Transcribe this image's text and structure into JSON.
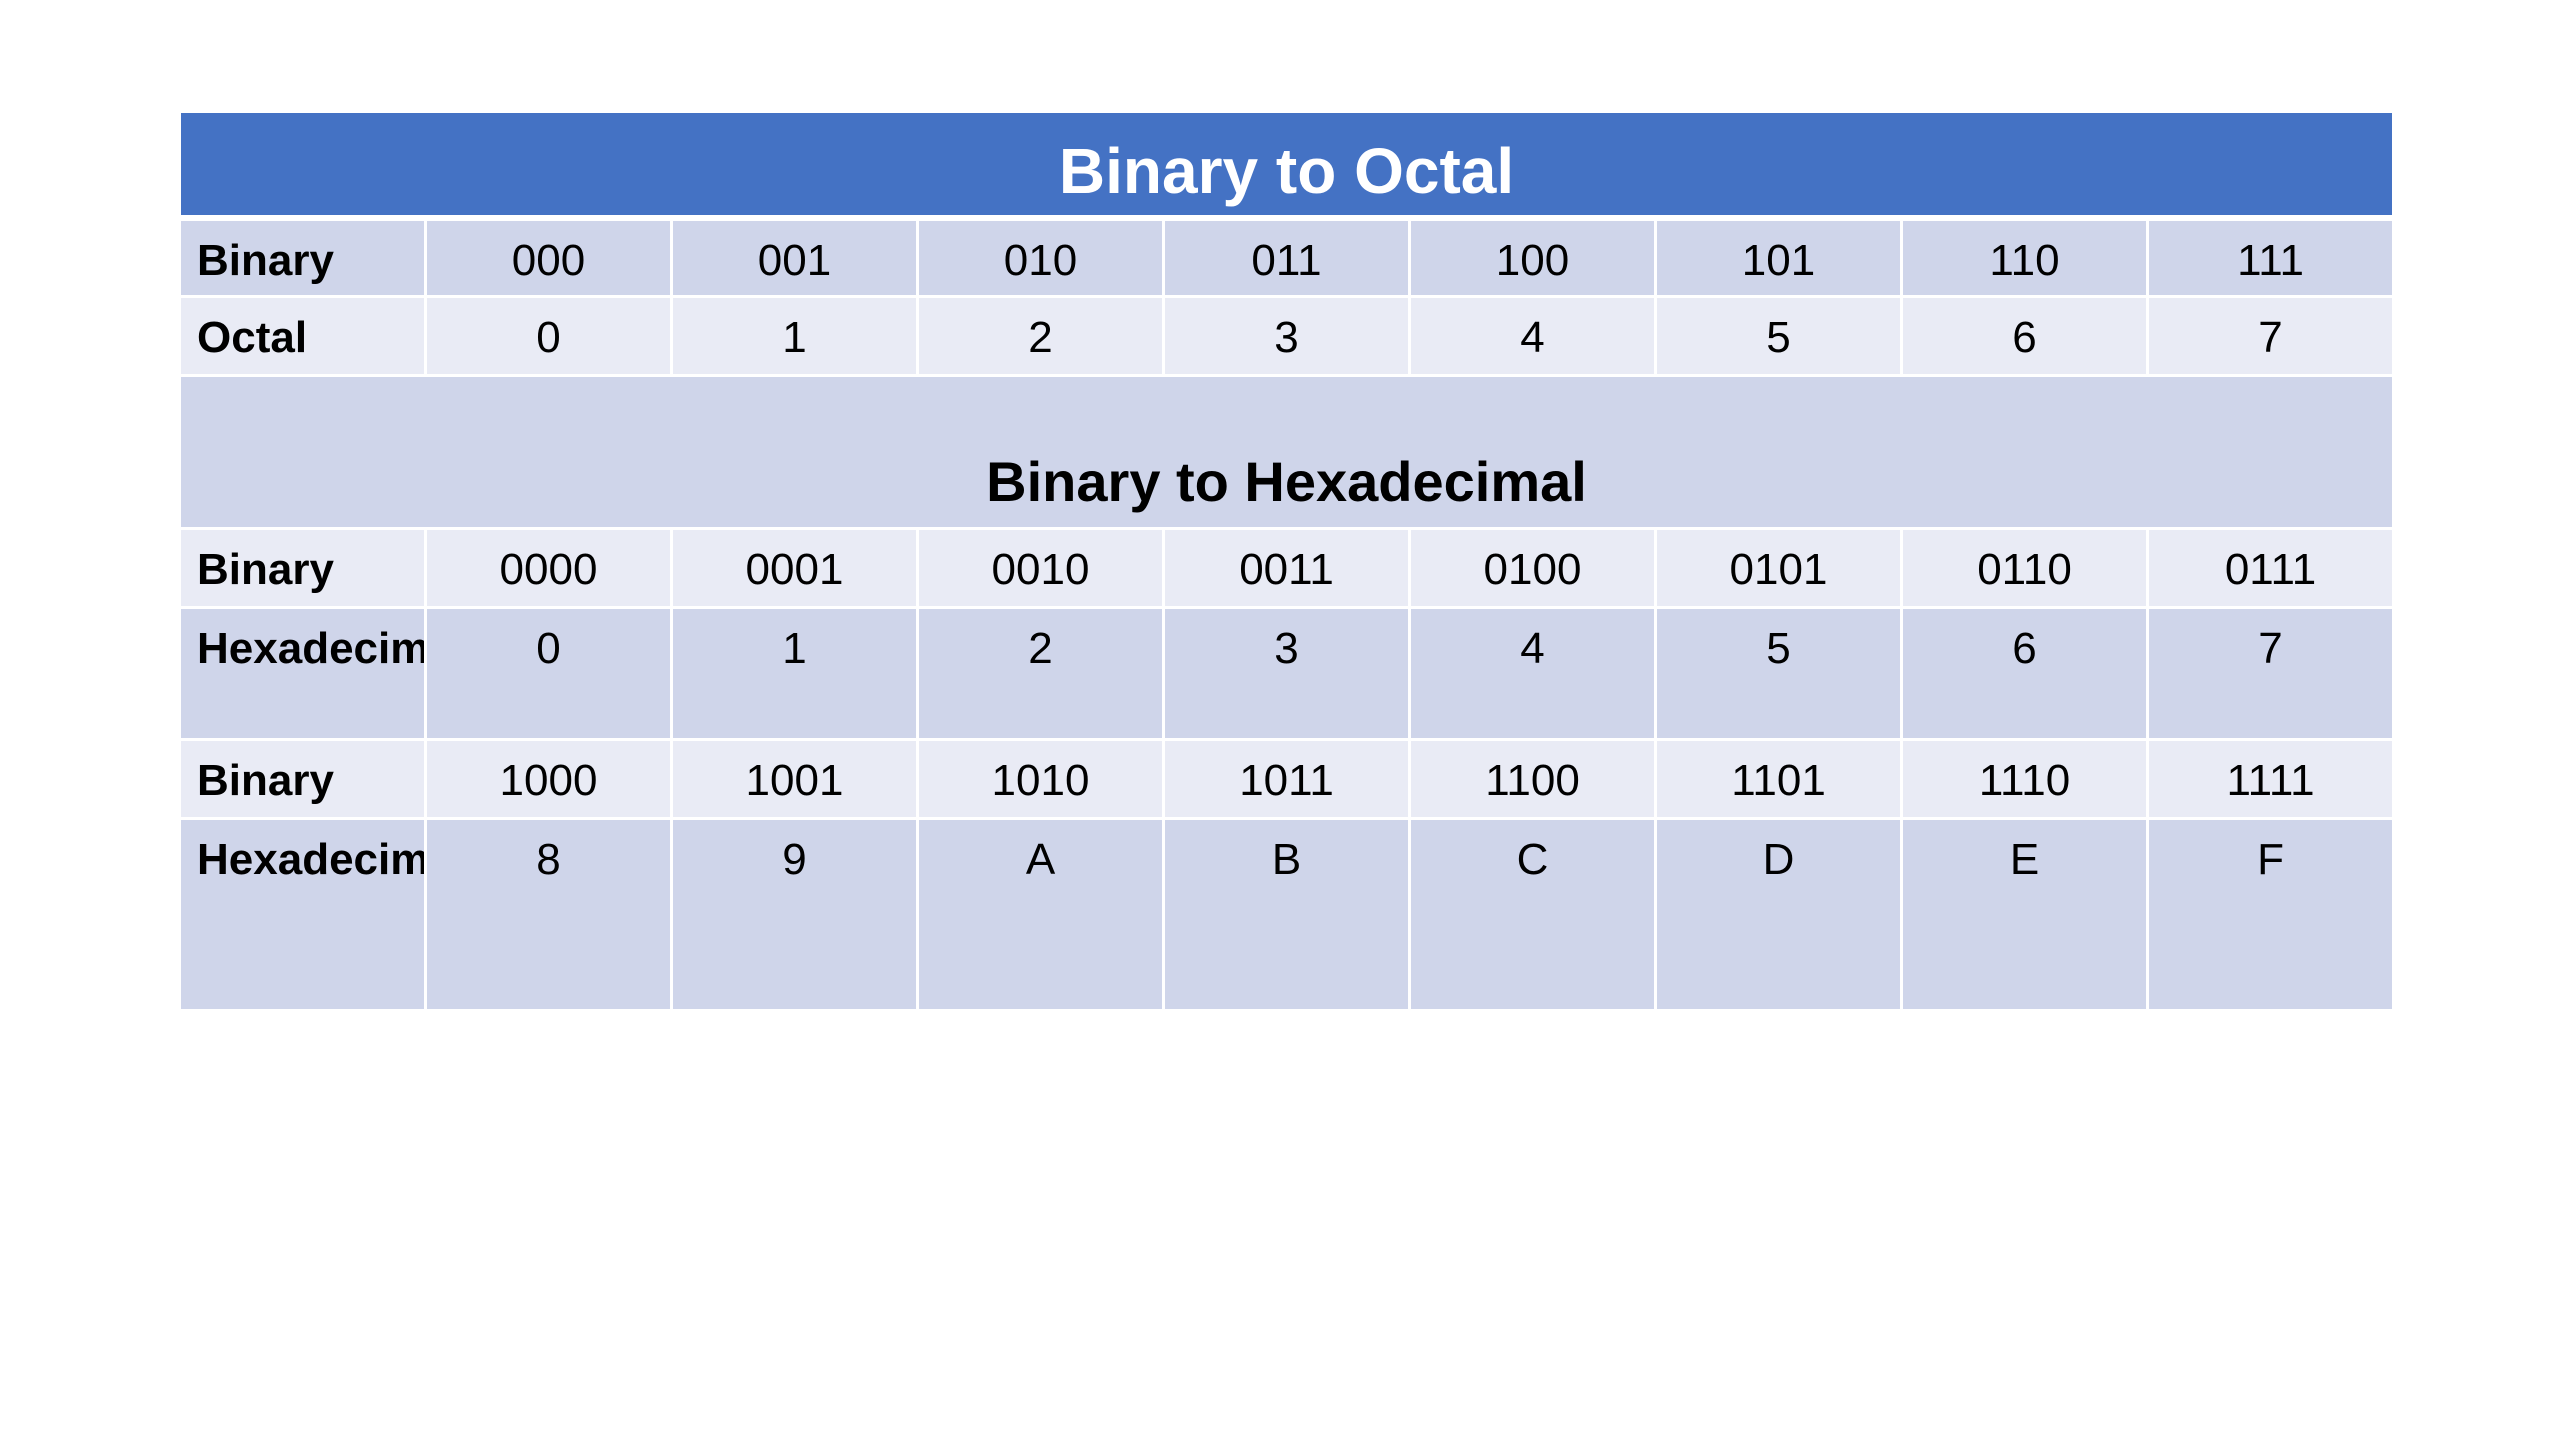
{
  "octal_table": {
    "title": "Binary to Octal",
    "rows": [
      {
        "label": "Binary",
        "values": [
          "000",
          "001",
          "010",
          "011",
          "100",
          "101",
          "110",
          "111"
        ]
      },
      {
        "label": "Octal",
        "values": [
          "0",
          "1",
          "2",
          "3",
          "4",
          "5",
          "6",
          "7"
        ]
      }
    ]
  },
  "hex_table": {
    "title": "Binary to Hexadecimal",
    "rows": [
      {
        "label": "Binary",
        "values": [
          "0000",
          "0001",
          "0010",
          "0011",
          "0100",
          "0101",
          "0110",
          "0111"
        ]
      },
      {
        "label": "Hexadecimal",
        "values": [
          "0",
          "1",
          "2",
          "3",
          "4",
          "5",
          "6",
          "7"
        ]
      },
      {
        "label": "Binary",
        "values": [
          "1000",
          "1001",
          "1010",
          "1011",
          "1100",
          "1101",
          "1110",
          "1111"
        ]
      },
      {
        "label": "Hexadecimal",
        "values": [
          "8",
          "9",
          "A",
          "B",
          "C",
          "D",
          "E",
          "F"
        ]
      }
    ]
  },
  "colors": {
    "header_blue": "#4472c4",
    "band_dark": "#cfd5ea",
    "band_light": "#e9ebf5"
  }
}
